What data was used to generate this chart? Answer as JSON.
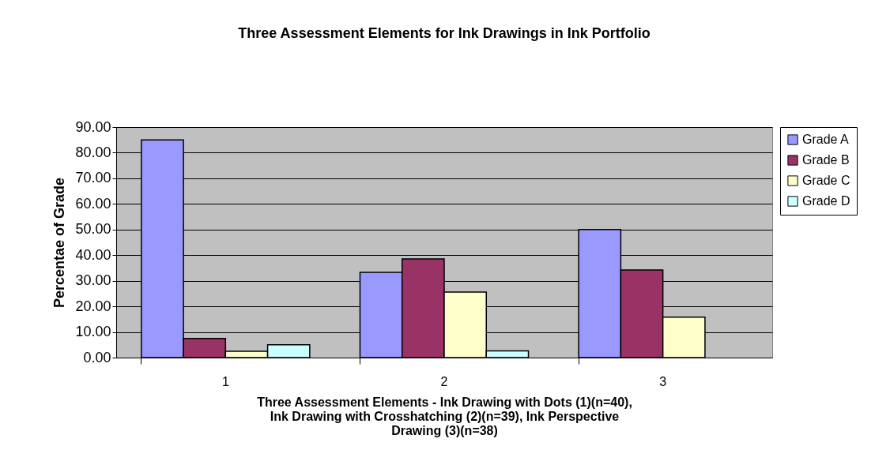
{
  "chart_data": {
    "type": "bar",
    "title": "Three Assessment Elements for Ink Drawings in Ink Portfolio",
    "xlabel": "Three Assessment Elements - Ink Drawing with Dots (1)(n=40), Ink Drawing with Crosshatching (2)(n=39), Ink Perspective Drawing (3)(n=38)",
    "ylabel": "Percentae of Grade",
    "categories": [
      "1",
      "2",
      "3"
    ],
    "series": [
      {
        "name": "Grade A",
        "color": "#9999ff",
        "values": [
          85,
          33.3,
          50
        ]
      },
      {
        "name": "Grade B",
        "color": "#993366",
        "values": [
          7.5,
          38.5,
          34.2
        ]
      },
      {
        "name": "Grade C",
        "color": "#ffffcc",
        "values": [
          2.5,
          25.6,
          15.8
        ]
      },
      {
        "name": "Grade D",
        "color": "#ccffff",
        "values": [
          5,
          2.6,
          0
        ]
      }
    ],
    "ylim": [
      0,
      90
    ],
    "yticks": [
      {
        "value": 0,
        "label": "0.00"
      },
      {
        "value": 10,
        "label": "10.00"
      },
      {
        "value": 20,
        "label": "20.00"
      },
      {
        "value": 30,
        "label": "30.00"
      },
      {
        "value": 40,
        "label": "40.00"
      },
      {
        "value": 50,
        "label": "50.00"
      },
      {
        "value": 60,
        "label": "60.00"
      },
      {
        "value": 70,
        "label": "70.00"
      },
      {
        "value": 80,
        "label": "80.00"
      },
      {
        "value": 90,
        "label": "90.00"
      }
    ],
    "grid": "y",
    "legend": "right"
  }
}
